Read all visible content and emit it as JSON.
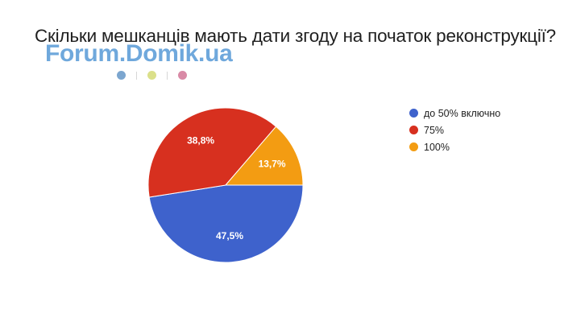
{
  "watermark": {
    "text": "Forum.Domik.ua",
    "dot_colors": [
      "#7ca6cf",
      "#dbe08a",
      "#d98aa6"
    ]
  },
  "chart_data": {
    "type": "pie",
    "title": "Скільки мешканців мають дати згоду на початок реконструкції?",
    "legend_position": "right",
    "slices": [
      {
        "label": "до 50% включно",
        "value": 47.5,
        "display": "47,5%",
        "color": "#3e62cc"
      },
      {
        "label": "75%",
        "value": 38.8,
        "display": "38,8%",
        "color": "#d7301f"
      },
      {
        "label": "100%",
        "value": 13.7,
        "display": "13,7%",
        "color": "#f39c12"
      }
    ]
  }
}
